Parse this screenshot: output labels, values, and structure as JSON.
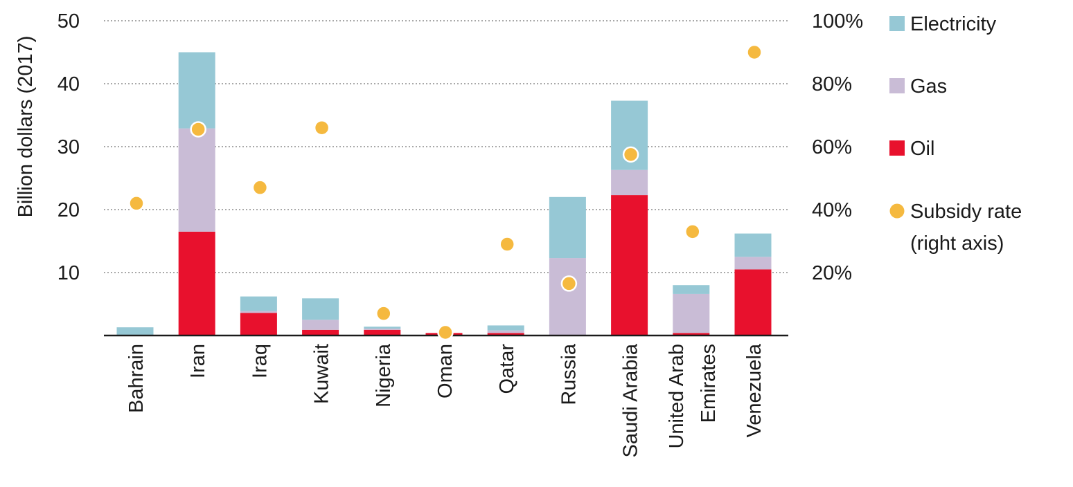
{
  "chart_data": {
    "type": "bar",
    "stacked": true,
    "categories": [
      [
        "Bahrain"
      ],
      [
        "Iran"
      ],
      [
        "Iraq"
      ],
      [
        "Kuwait"
      ],
      [
        "Nigeria"
      ],
      [
        "Oman"
      ],
      [
        "Qatar"
      ],
      [
        "Russia"
      ],
      [
        "Saudi Arabia"
      ],
      [
        "United Arab",
        "Emirates"
      ],
      [
        "Venezuela"
      ]
    ],
    "series": [
      {
        "name": "Oil",
        "color": "#e8112d",
        "values": [
          0,
          16.5,
          3.6,
          0.9,
          0.9,
          0.4,
          0.4,
          0,
          22.3,
          0.4,
          10.5
        ]
      },
      {
        "name": "Gas",
        "color": "#c9bcd6",
        "values": [
          0,
          16.4,
          0.3,
          1.6,
          0.2,
          0,
          0.4,
          12.3,
          4.0,
          6.2,
          2.0
        ]
      },
      {
        "name": "Electricity",
        "color": "#96c8d5",
        "values": [
          1.3,
          12.1,
          2.3,
          3.4,
          0.3,
          0,
          0.8,
          9.7,
          11.0,
          1.4,
          3.7
        ]
      }
    ],
    "subsidy_rate": {
      "name": "Subsidy rate (right axis)",
      "color": "#f5b93f",
      "values": [
        42,
        65.5,
        47,
        66,
        7,
        1,
        29,
        16.5,
        57.5,
        33,
        90
      ]
    },
    "ylabel": "Billion dollars (2017)",
    "ylim": [
      0,
      50
    ],
    "yticks": [
      10,
      20,
      30,
      40,
      50
    ],
    "y2lim": [
      0,
      100
    ],
    "y2ticks": [
      "20%",
      "40%",
      "60%",
      "80%",
      "100%"
    ],
    "y2tick_values": [
      20,
      40,
      60,
      80,
      100
    ],
    "grid": true,
    "legend": {
      "placement": "right",
      "items": [
        {
          "label": "Electricity",
          "color": "#96c8d5",
          "shape": "square"
        },
        {
          "label": "Gas",
          "color": "#c9bcd6",
          "shape": "square"
        },
        {
          "label": "Oil",
          "color": "#e8112d",
          "shape": "square"
        },
        {
          "label": [
            "Subsidy rate",
            "(right axis)"
          ],
          "color": "#f5b93f",
          "shape": "circle"
        }
      ]
    }
  }
}
